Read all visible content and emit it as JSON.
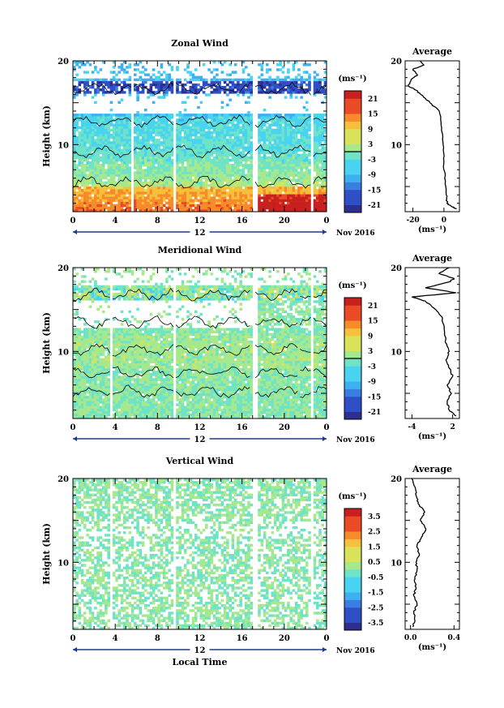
{
  "chart_data": [
    {
      "type": "heatmap",
      "title": "Zonal Wind",
      "ylabel": "Height (km)",
      "yticks": [
        "20",
        "10"
      ],
      "ylim": [
        2,
        20
      ],
      "xticks": [
        "0",
        "4",
        "8",
        "12",
        "16",
        "20",
        "0"
      ],
      "xlim": [
        0,
        24
      ],
      "date_day": "12",
      "date_month": "Nov 2016",
      "colorbar": {
        "unit": "(ms⁻¹)",
        "ticks": [
          "21",
          "15",
          "9",
          "3",
          "-3",
          "-9",
          "-15",
          "-21"
        ],
        "range": [
          -24,
          24
        ]
      },
      "data_gaps_hours": [
        [
          5.6,
          5.8
        ],
        [
          9.6,
          9.8
        ],
        [
          16.9,
          17.5
        ],
        [
          22.6,
          22.8
        ]
      ],
      "profile": {
        "title": "Average",
        "xticks": [
          "-20",
          "0"
        ],
        "xlim": [
          -25,
          10
        ],
        "xlabel": "(ms⁻¹)",
        "yticks": [
          "20",
          "10"
        ],
        "points": [
          [
            8,
            2.3
          ],
          [
            5,
            2.6
          ],
          [
            2,
            3
          ],
          [
            1.5,
            4
          ],
          [
            0.5,
            6
          ],
          [
            0,
            8
          ],
          [
            -0.5,
            10
          ],
          [
            -1.5,
            12
          ],
          [
            -3,
            14
          ],
          [
            -9,
            15
          ],
          [
            -15,
            16
          ],
          [
            -18,
            16.5
          ],
          [
            -23,
            17
          ],
          [
            -21,
            17.8
          ],
          [
            -17,
            18.3
          ],
          [
            -20,
            19
          ],
          [
            -13,
            19.5
          ],
          [
            -15,
            20
          ]
        ]
      }
    },
    {
      "type": "heatmap",
      "title": "Meridional Wind",
      "ylabel": "Height (km)",
      "yticks": [
        "20",
        "10"
      ],
      "ylim": [
        2,
        20
      ],
      "xticks": [
        "0",
        "4",
        "8",
        "12",
        "16",
        "20",
        "0"
      ],
      "xlim": [
        0,
        24
      ],
      "date_day": "12",
      "date_month": "Nov 2016",
      "colorbar": {
        "unit": "(ms⁻¹)",
        "ticks": [
          "21",
          "15",
          "9",
          "3",
          "-3",
          "-9",
          "-15",
          "-21"
        ],
        "range": [
          -24,
          24
        ]
      },
      "data_gaps_hours": [
        [
          3.6,
          3.8
        ],
        [
          9.6,
          9.8
        ],
        [
          16.9,
          17.5
        ],
        [
          21.4,
          21.6
        ],
        [
          22.6,
          22.8
        ]
      ],
      "profile": {
        "title": "Average",
        "xticks": [
          "-4",
          "2"
        ],
        "xlim": [
          -5,
          3
        ],
        "xlabel": "(ms⁻¹)",
        "yticks": [
          "20",
          "10"
        ],
        "points": [
          [
            2.5,
            2.3
          ],
          [
            1.5,
            3
          ],
          [
            1.2,
            4
          ],
          [
            1.8,
            5
          ],
          [
            1.2,
            6
          ],
          [
            2.0,
            7
          ],
          [
            1.5,
            8
          ],
          [
            1.0,
            9
          ],
          [
            1.5,
            10
          ],
          [
            1.0,
            11
          ],
          [
            0.8,
            12
          ],
          [
            0.5,
            14
          ],
          [
            -0.5,
            15
          ],
          [
            -2,
            16
          ],
          [
            -4,
            16.5
          ],
          [
            2.5,
            17
          ],
          [
            -2,
            17.6
          ],
          [
            1.5,
            18.3
          ],
          [
            2.2,
            18.7
          ],
          [
            0,
            19.3
          ],
          [
            1.5,
            20
          ]
        ]
      }
    },
    {
      "type": "heatmap",
      "title": "Vertical Wind",
      "ylabel": "Height (km)",
      "yticks": [
        "20",
        "10"
      ],
      "ylim": [
        2,
        20
      ],
      "xticks": [
        "0",
        "4",
        "8",
        "12",
        "16",
        "20",
        "0"
      ],
      "xlim": [
        0,
        24
      ],
      "date_day": "12",
      "date_month": "Nov 2016",
      "xlabel": "Local Time",
      "colorbar": {
        "unit": "(ms⁻¹)",
        "ticks": [
          "3.5",
          "2.5",
          "1.5",
          "0.5",
          "-0.5",
          "-1.5",
          "-2.5",
          "-3.5"
        ],
        "range": [
          -4,
          4
        ]
      },
      "data_gaps_hours": [
        [
          3.6,
          3.8
        ],
        [
          9.6,
          9.8
        ],
        [
          16.9,
          17.5
        ],
        [
          21.4,
          21.6
        ],
        [
          22.6,
          22.8
        ]
      ],
      "profile": {
        "title": "Average",
        "xticks": [
          "0.0",
          "0.4"
        ],
        "xlim": [
          -0.05,
          0.45
        ],
        "xlabel": "(ms⁻¹)",
        "yticks": [
          "20",
          "10"
        ],
        "points": [
          [
            0.02,
            2.3
          ],
          [
            0.04,
            3
          ],
          [
            0.03,
            4
          ],
          [
            0.06,
            5
          ],
          [
            0.03,
            6
          ],
          [
            0.05,
            7
          ],
          [
            0.04,
            8
          ],
          [
            0.06,
            9
          ],
          [
            0.05,
            10
          ],
          [
            0.08,
            11
          ],
          [
            0.06,
            12
          ],
          [
            0.1,
            13
          ],
          [
            0.14,
            14
          ],
          [
            0.09,
            15
          ],
          [
            0.13,
            16
          ],
          [
            0.07,
            17
          ],
          [
            0.05,
            18
          ],
          [
            0.04,
            19
          ],
          [
            0.01,
            20
          ]
        ]
      }
    }
  ]
}
